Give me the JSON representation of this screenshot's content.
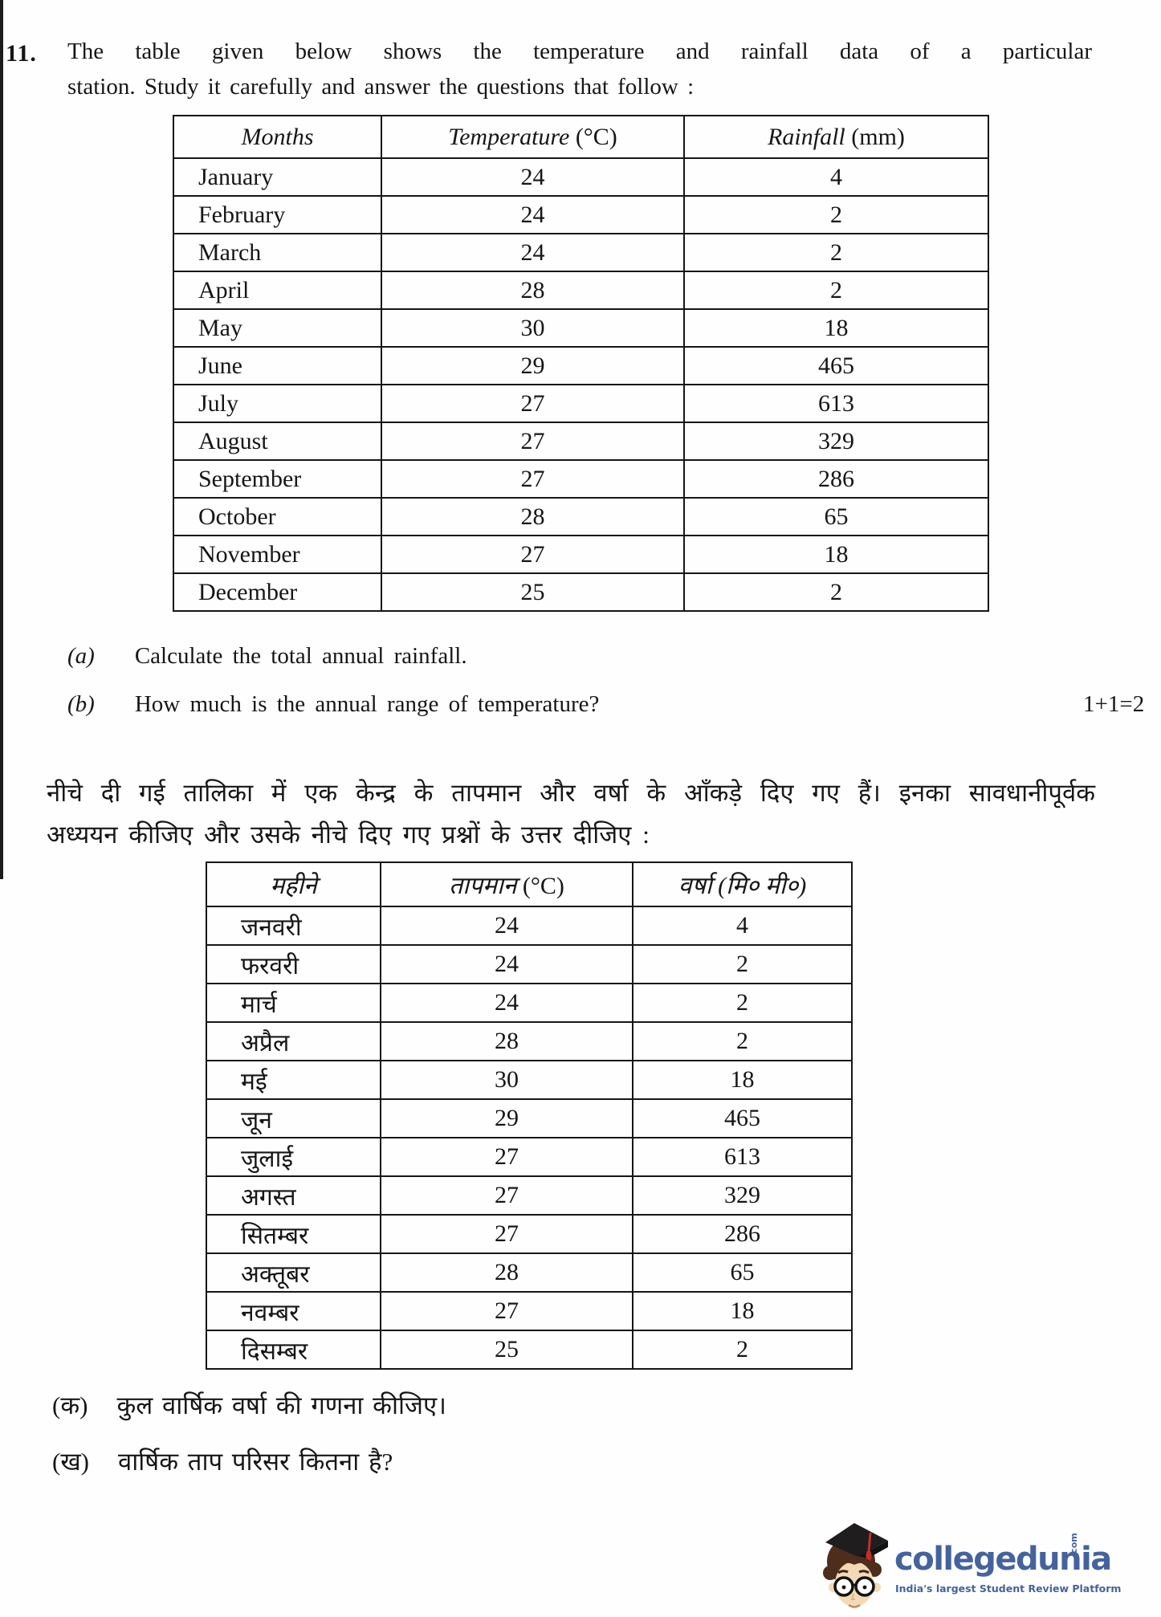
{
  "question": {
    "number": "11.",
    "line1": "The table given below shows the temperature and rainfall data of a particular",
    "line2": "station. Study it carefully and answer the questions that follow :"
  },
  "table_en": {
    "headers": [
      {
        "label": "Months",
        "unit": ""
      },
      {
        "label": "Temperature",
        "unit": "(°C)"
      },
      {
        "label": "Rainfall",
        "unit": "(mm)"
      }
    ],
    "rows": [
      [
        "January",
        "24",
        "4"
      ],
      [
        "February",
        "24",
        "2"
      ],
      [
        "March",
        "24",
        "2"
      ],
      [
        "April",
        "28",
        "2"
      ],
      [
        "May",
        "30",
        "18"
      ],
      [
        "June",
        "29",
        "465"
      ],
      [
        "July",
        "27",
        "613"
      ],
      [
        "August",
        "27",
        "329"
      ],
      [
        "September",
        "27",
        "286"
      ],
      [
        "October",
        "28",
        "65"
      ],
      [
        "November",
        "27",
        "18"
      ],
      [
        "December",
        "25",
        "2"
      ]
    ]
  },
  "subquestions_en": {
    "a_label": "(a)",
    "a_text": "Calculate the total annual rainfall.",
    "b_label": "(b)",
    "b_text": "How much is the annual range of temperature?",
    "marks": "1+1=2"
  },
  "hindi": {
    "intro_line1": "नीचे दी गई तालिका में एक केन्द्र के तापमान और वर्षा के आँकड़े दिए गए हैं। इनका सावधानीपूर्वक",
    "intro_line2": "अध्ययन कीजिए और उसके नीचे दिए गए प्रश्नों के उत्तर दीजिए :",
    "table": {
      "headers": [
        {
          "label": "महीने",
          "unit": ""
        },
        {
          "label": "तापमान",
          "unit": "(°C)"
        },
        {
          "label": "वर्षा",
          "unit": "(मि० मी०)"
        }
      ],
      "rows": [
        [
          "जनवरी",
          "24",
          "4"
        ],
        [
          "फरवरी",
          "24",
          "2"
        ],
        [
          "मार्च",
          "24",
          "2"
        ],
        [
          "अप्रैल",
          "28",
          "2"
        ],
        [
          "मई",
          "30",
          "18"
        ],
        [
          "जून",
          "29",
          "465"
        ],
        [
          "जुलाई",
          "27",
          "613"
        ],
        [
          "अगस्त",
          "27",
          "329"
        ],
        [
          "सितम्बर",
          "27",
          "286"
        ],
        [
          "अक्तूबर",
          "28",
          "65"
        ],
        [
          "नवम्बर",
          "27",
          "18"
        ],
        [
          "दिसम्बर",
          "25",
          "2"
        ]
      ]
    },
    "k_label": "(क)",
    "k_text": "कुल वार्षिक वर्षा की गणना कीजिए।",
    "kh_label": "(ख)",
    "kh_text": "वार्षिक ताप परिसर कितना है?"
  },
  "logo": {
    "brand": "collegedunia",
    "brand_suffix": ".com",
    "tagline": "India's largest Student Review Platform",
    "brand_color": "#44639e"
  }
}
